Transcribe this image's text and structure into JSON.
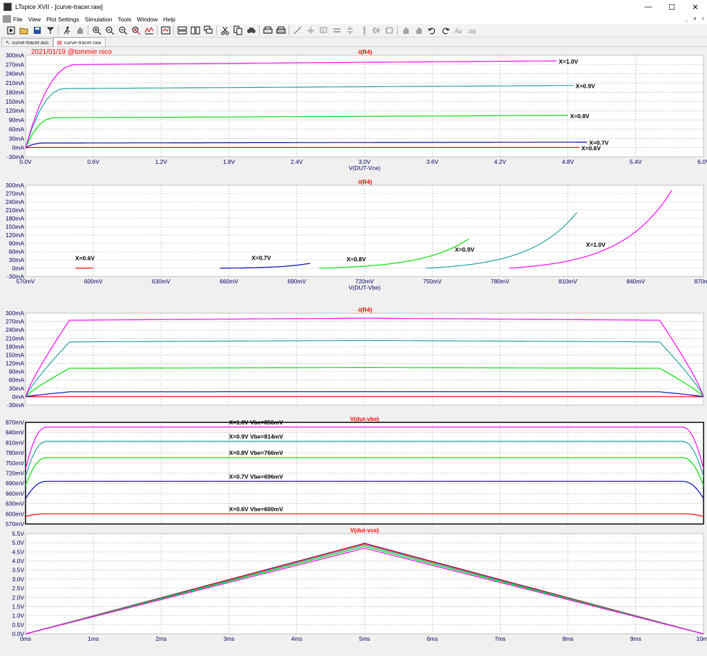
{
  "window": {
    "title": "LTspice XVII - [curve-tracer.raw]",
    "buttons": [
      "—",
      "☐",
      "✕"
    ]
  },
  "menu": {
    "items": [
      "File",
      "View",
      "Plot Settings",
      "Simulation",
      "Tools",
      "Window",
      "Help"
    ],
    "mdi_buttons": [
      "_",
      "ø",
      "x"
    ]
  },
  "toolbar": {
    "icons": [
      "run-icon",
      "open-icon",
      "save-icon",
      "control-panel-icon",
      "run-man-icon",
      "halt-hand-icon",
      "zoom-in-icon",
      "zoom-out-icon",
      "zoom-out-icon",
      "zoom-cancel-icon",
      "autorange-icon",
      "fit-icon",
      "tile-horizontal-icon",
      "tile-vertical-icon",
      "cascade-icon",
      "cut-icon",
      "copy-icon",
      "find-icon",
      "print-preview-icon",
      "print-icon",
      "wire-icon",
      "ground-icon",
      "label-icon",
      "resistor-icon",
      "capacitor-icon",
      "inductor-icon",
      "diode-icon",
      "component-icon",
      "move-icon",
      "drag-icon",
      "undo-icon",
      "redo-icon",
      "text-icon",
      "spice-directive-icon"
    ]
  },
  "tabs": [
    {
      "label": "curve-tracer.asc",
      "active": false
    },
    {
      "label": "curve-tracer.raw",
      "active": true
    }
  ],
  "annotation": "2021/01/19 @tommie nico",
  "colors": {
    "red": "#ff0000",
    "blue": "#0000b0",
    "green": "#00e000",
    "teal": "#20a0a0",
    "magenta": "#ff00ff",
    "grid": "#a8a8a8",
    "title": "#ff0000"
  },
  "chart_data": [
    {
      "type": "line",
      "title": "-I(R4)",
      "xlabel": "V(DUT-Vce)",
      "xlim": [
        0,
        6
      ],
      "ylim": [
        -30,
        300
      ],
      "xticks": [
        "0.0V",
        "0.6V",
        "1.2V",
        "1.8V",
        "2.4V",
        "3.0V",
        "3.6V",
        "4.2V",
        "4.8V",
        "5.4V",
        "6.0V"
      ],
      "yticks": [
        "-30mA",
        "0mA",
        "30mA",
        "60mA",
        "90mA",
        "120mA",
        "150mA",
        "180mA",
        "210mA",
        "240mA",
        "270mA",
        "300mA"
      ],
      "series": [
        {
          "name": "X=0.6V",
          "color": "red",
          "sat": 0.5,
          "final": 0.5,
          "knee": 0.1,
          "xmax": 4.9,
          "points": [
            [
              0,
              0
            ],
            [
              0.1,
              0.5
            ],
            [
              4.9,
              0.5
            ]
          ]
        },
        {
          "name": "X=0.7V",
          "color": "blue",
          "sat": 15,
          "final": 18,
          "knee": 0.15,
          "xmax": 4.97,
          "points": [
            [
              0,
              0
            ],
            [
              0.15,
              15
            ],
            [
              4.97,
              18
            ]
          ]
        },
        {
          "name": "X=0.8V",
          "color": "green",
          "sat": 97,
          "final": 105,
          "knee": 0.25,
          "xmax": 4.8,
          "points": [
            [
              0,
              0
            ],
            [
              0.25,
              97
            ],
            [
              4.8,
              105
            ]
          ]
        },
        {
          "name": "X=0.9V",
          "color": "teal",
          "sat": 192,
          "final": 202,
          "knee": 0.35,
          "xmax": 4.85,
          "points": [
            [
              0,
              0
            ],
            [
              0.35,
              192
            ],
            [
              4.85,
              202
            ]
          ]
        },
        {
          "name": "X=1.0V",
          "color": "magenta",
          "sat": 270,
          "final": 282,
          "knee": 0.45,
          "xmax": 4.7,
          "points": [
            [
              0,
              0
            ],
            [
              0.45,
              270
            ],
            [
              4.7,
              282
            ]
          ]
        }
      ]
    },
    {
      "type": "line",
      "title": "-I(R4)",
      "xlabel": "V(DUT-Vbe)",
      "xlim": [
        570,
        870
      ],
      "ylim": [
        -30,
        300
      ],
      "xticks": [
        "570mV",
        "600mV",
        "630mV",
        "660mV",
        "690mV",
        "720mV",
        "750mV",
        "780mV",
        "810mV",
        "840mV",
        "870mV"
      ],
      "yticks": [
        "-30mA",
        "0mA",
        "30mA",
        "60mA",
        "90mA",
        "120mA",
        "150mA",
        "180mA",
        "210mA",
        "240mA",
        "270mA",
        "300mA"
      ],
      "series": [
        {
          "name": "X=0.6V",
          "color": "red",
          "vmin": 592,
          "vmax": 600,
          "imax": 0.5
        },
        {
          "name": "X=0.7V",
          "color": "blue",
          "vmin": 656,
          "vmax": 696,
          "imax": 18
        },
        {
          "name": "X=0.8V",
          "color": "green",
          "vmin": 700,
          "vmax": 766,
          "imax": 105
        },
        {
          "name": "X=0.9V",
          "color": "teal",
          "vmin": 747,
          "vmax": 814,
          "imax": 202
        },
        {
          "name": "X=1.0V",
          "color": "magenta",
          "vmin": 784,
          "vmax": 856,
          "imax": 282
        }
      ]
    },
    {
      "type": "line",
      "title": "-I(R4)",
      "xlim": [
        0,
        10
      ],
      "ylim": [
        -30,
        300
      ],
      "yticks": [
        "-30mA",
        "0mA",
        "30mA",
        "60mA",
        "90mA",
        "120mA",
        "150mA",
        "180mA",
        "210mA",
        "240mA",
        "270mA",
        "300mA"
      ],
      "series": [
        {
          "color": "red",
          "level": 0.5
        },
        {
          "color": "blue",
          "level": 18
        },
        {
          "color": "green",
          "level": 105
        },
        {
          "color": "teal",
          "level": 202
        },
        {
          "color": "magenta",
          "level": 282
        }
      ]
    },
    {
      "type": "line",
      "title": "V(dut-vbe)",
      "xlim": [
        0,
        10
      ],
      "ylim": [
        570,
        870
      ],
      "yticks": [
        "570mV",
        "600mV",
        "630mV",
        "660mV",
        "690mV",
        "720mV",
        "750mV",
        "780mV",
        "810mV",
        "840mV",
        "870mV"
      ],
      "series": [
        {
          "name": "X=0.6V Vbe=600mV",
          "color": "red",
          "level": 600
        },
        {
          "name": "X=0.7V Vbe=696mV",
          "color": "blue",
          "level": 696
        },
        {
          "name": "X=0.8V Vbe=766mV",
          "color": "green",
          "level": 766
        },
        {
          "name": "X=0.9V Vbe=814mV",
          "color": "teal",
          "level": 814
        },
        {
          "name": "X=1.0V Vbe=856mV",
          "color": "magenta",
          "level": 856
        }
      ]
    },
    {
      "type": "line",
      "title": "V(dut-vce)",
      "xlim": [
        0,
        10
      ],
      "ylim": [
        0,
        5.5
      ],
      "xticks": [
        "0ms",
        "1ms",
        "2ms",
        "3ms",
        "4ms",
        "5ms",
        "6ms",
        "7ms",
        "8ms",
        "9ms",
        "10ms"
      ],
      "yticks": [
        "0.0V",
        "0.5V",
        "1.0V",
        "1.5V",
        "2.0V",
        "2.5V",
        "3.0V",
        "3.5V",
        "4.0V",
        "4.5V",
        "5.0V",
        "5.5V"
      ],
      "series": [
        {
          "color": "blue",
          "peak": 4.97
        },
        {
          "color": "red",
          "peak": 4.95
        },
        {
          "color": "teal",
          "peak": 4.88
        },
        {
          "color": "green",
          "peak": 4.8
        },
        {
          "color": "magenta",
          "peak": 4.7
        }
      ]
    }
  ]
}
